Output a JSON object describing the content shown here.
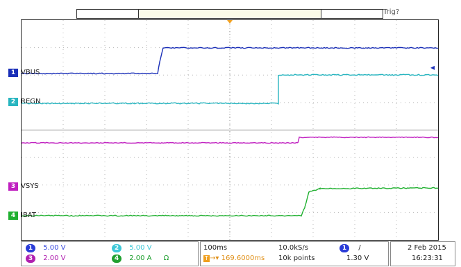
{
  "trigger_label": "Trig?",
  "trigger_marker": "T",
  "channels": [
    {
      "id": "1",
      "label": "VBUS",
      "color": "#1a2fb8"
    },
    {
      "id": "2",
      "label": "REGN",
      "color": "#28b5c0"
    },
    {
      "id": "3",
      "label": "",
      "color": "#c020c0"
    },
    {
      "id": "3",
      "label": "VSYS",
      "color": "#c020c0"
    },
    {
      "id": "4",
      "label": "IBAT",
      "color": "#20b030"
    }
  ],
  "settings": {
    "ch1": {
      "num": "1",
      "value": "5.00 V",
      "color": "#2a3cd8"
    },
    "ch2": {
      "num": "2",
      "value": "5.00 V",
      "color": "#3ec8d8"
    },
    "ch3": {
      "num": "3",
      "value": "2.00 V",
      "color": "#b020b0"
    },
    "ch4": {
      "num": "4",
      "value": "2.00 A",
      "color": "#20a030",
      "suffix": "Ω"
    }
  },
  "timebase": {
    "time_div": "100ms",
    "sample_rate": "10.0kS/s",
    "delay": "169.6000ms",
    "record_length": "10k points"
  },
  "trigger": {
    "channel": "1",
    "slope": "/",
    "level": "1.30 V"
  },
  "datetime": {
    "date": "2 Feb  2015",
    "time": "16:23:31"
  }
}
